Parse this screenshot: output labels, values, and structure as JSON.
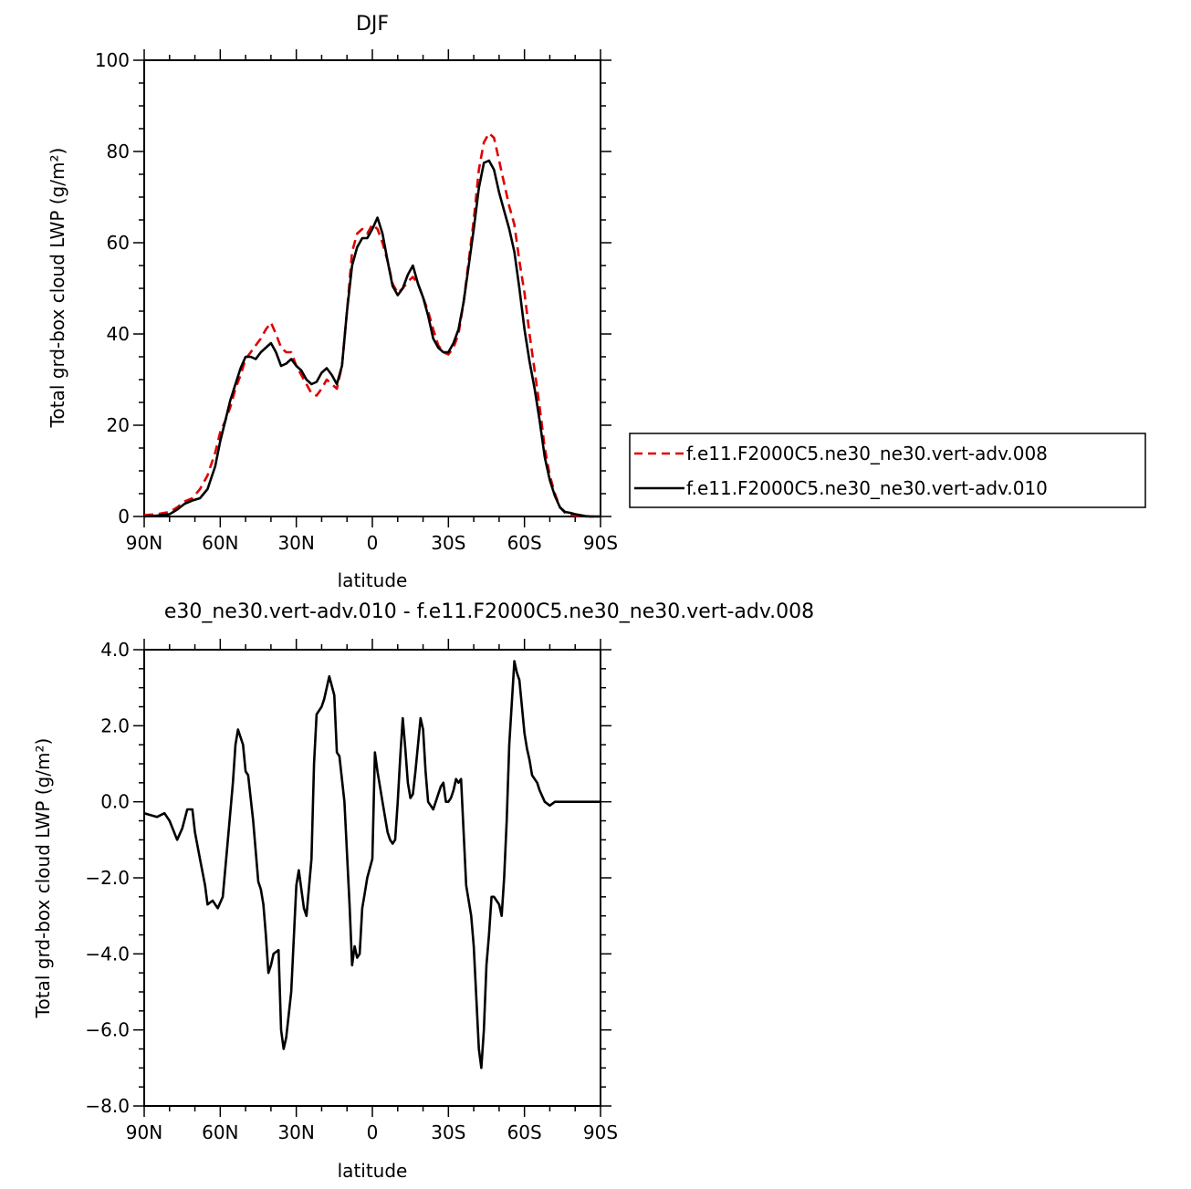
{
  "chart_data": [
    {
      "type": "line",
      "title": "DJF",
      "xlabel": "latitude",
      "ylabel": "Total grd-box cloud LWP (g/m²)",
      "xlim": [
        -90,
        90
      ],
      "ylim": [
        0,
        100
      ],
      "x_ticks": [
        -90,
        -60,
        -30,
        0,
        30,
        60,
        90
      ],
      "x_tick_labels": [
        "90N",
        "60N",
        "30N",
        "0",
        "30S",
        "60S",
        "90S"
      ],
      "y_ticks": [
        0,
        20,
        40,
        60,
        80,
        100
      ],
      "y_tick_labels": [
        "0",
        "20",
        "40",
        "60",
        "80",
        "100"
      ],
      "grid": false,
      "legend_position": "right",
      "series": [
        {
          "name": "f.e11.F2000C5.ne30_ne30.vert-adv.008",
          "color": "#e00000",
          "dash": "dashed",
          "x": [
            -90,
            -85,
            -80,
            -77,
            -74,
            -71,
            -68,
            -65,
            -62,
            -60,
            -58,
            -56,
            -54,
            -52,
            -50,
            -48,
            -46,
            -44,
            -42,
            -40,
            -38,
            -36,
            -34,
            -32,
            -30,
            -28,
            -26,
            -24,
            -22,
            -20,
            -18,
            -16,
            -14,
            -12,
            -10,
            -8,
            -6,
            -4,
            -2,
            0,
            2,
            4,
            6,
            8,
            10,
            12,
            14,
            16,
            18,
            20,
            22,
            24,
            26,
            28,
            30,
            32,
            34,
            36,
            38,
            40,
            42,
            44,
            46,
            48,
            50,
            52,
            54,
            56,
            58,
            60,
            62,
            64,
            66,
            68,
            70,
            72,
            74,
            76,
            78,
            80,
            82,
            84,
            86,
            88,
            90
          ],
          "y": [
            0.3,
            0.5,
            1.0,
            2.0,
            3.3,
            4.0,
            6.0,
            9.0,
            14.0,
            18.5,
            21.0,
            24.0,
            28.0,
            31.0,
            34.5,
            36.0,
            37.5,
            39.0,
            41.0,
            42.5,
            40.0,
            37.0,
            36.0,
            36.0,
            33.0,
            31.0,
            29.0,
            27.0,
            26.5,
            28.0,
            30.0,
            29.0,
            28.0,
            33.0,
            45.0,
            58.0,
            62.0,
            63.0,
            62.0,
            64.0,
            63.0,
            60.0,
            56.0,
            51.0,
            49.0,
            50.0,
            51.5,
            52.5,
            51.0,
            48.0,
            45.0,
            41.0,
            37.5,
            36.0,
            35.5,
            37.0,
            40.0,
            47.0,
            56.0,
            65.0,
            76.0,
            82.0,
            84.0,
            83.0,
            78.0,
            73.0,
            68.0,
            64.0,
            56.0,
            49.0,
            40.0,
            32.0,
            24.0,
            15.0,
            9.0,
            5.0,
            2.0,
            0.8,
            0.4,
            0.2,
            0.1,
            0.0,
            0.0,
            0.0,
            0.0
          ]
        },
        {
          "name": "f.e11.F2000C5.ne30_ne30.vert-adv.010",
          "color": "#000000",
          "dash": "solid",
          "x": [
            -90,
            -85,
            -80,
            -77,
            -74,
            -71,
            -68,
            -65,
            -62,
            -60,
            -58,
            -56,
            -54,
            -52,
            -50,
            -48,
            -46,
            -44,
            -42,
            -40,
            -38,
            -36,
            -34,
            -32,
            -30,
            -28,
            -26,
            -24,
            -22,
            -20,
            -18,
            -16,
            -14,
            -12,
            -10,
            -8,
            -6,
            -4,
            -2,
            0,
            2,
            4,
            6,
            8,
            10,
            12,
            14,
            16,
            18,
            20,
            22,
            24,
            26,
            28,
            30,
            32,
            34,
            36,
            38,
            40,
            42,
            44,
            46,
            48,
            50,
            52,
            54,
            56,
            58,
            60,
            62,
            64,
            66,
            68,
            70,
            72,
            74,
            76,
            78,
            80,
            82,
            84,
            86,
            88,
            90
          ],
          "y": [
            0,
            0.2,
            0.5,
            1.5,
            2.8,
            3.5,
            4.0,
            6.0,
            11.0,
            16.5,
            21.0,
            25.5,
            29.0,
            32.5,
            35.0,
            35.0,
            34.5,
            36.0,
            37.0,
            38.0,
            36.0,
            33.0,
            33.5,
            34.5,
            33.0,
            32.0,
            30.0,
            29.0,
            29.5,
            31.5,
            32.5,
            31.0,
            29.0,
            33.0,
            45.0,
            55.0,
            59.0,
            61.0,
            61.0,
            63.0,
            65.5,
            62.0,
            56.0,
            50.5,
            48.5,
            50.0,
            53.0,
            55.0,
            51.0,
            48.0,
            44.0,
            39.0,
            37.0,
            36.0,
            36.0,
            38.0,
            41.0,
            47.0,
            55.0,
            63.0,
            72.0,
            77.5,
            78.0,
            76.0,
            71.0,
            67.0,
            63.0,
            58.0,
            50.0,
            41.0,
            34.0,
            28.0,
            21.0,
            13.0,
            8.0,
            4.5,
            2.0,
            1.0,
            0.8,
            0.5,
            0.3,
            0.1,
            0.0,
            0.0,
            0.0
          ]
        }
      ]
    },
    {
      "type": "line",
      "title": "e30_ne30.vert-adv.010 - f.e11.F2000C5.ne30_ne30.vert-adv.008",
      "xlabel": "latitude",
      "ylabel": "Total grd-box cloud LWP (g/m²)",
      "xlim": [
        -90,
        90
      ],
      "ylim": [
        -8,
        4
      ],
      "x_ticks": [
        -90,
        -60,
        -30,
        0,
        30,
        60,
        90
      ],
      "x_tick_labels": [
        "90N",
        "60N",
        "30N",
        "0",
        "30S",
        "60S",
        "90S"
      ],
      "y_ticks": [
        -8,
        -6,
        -4,
        -2,
        0,
        2,
        4
      ],
      "y_tick_labels": [
        "−8.0",
        "−6.0",
        "−4.0",
        "−2.0",
        "0.0",
        "2.0",
        "4.0"
      ],
      "grid": false,
      "series": [
        {
          "color": "#000000",
          "dash": "solid",
          "x": [
            -90,
            -85,
            -82,
            -80,
            -77,
            -75,
            -73,
            -71,
            -70,
            -68,
            -66,
            -65,
            -63,
            -61,
            -59,
            -57,
            -55,
            -54,
            -53,
            -51,
            -50,
            -49,
            -47,
            -45,
            -44,
            -43,
            -42,
            -41,
            -40,
            -39,
            -37,
            -36,
            -35,
            -34,
            -32,
            -30,
            -29,
            -27,
            -26,
            -24,
            -23,
            -22,
            -20,
            -19,
            -18,
            -17,
            -15,
            -14,
            -13,
            -11,
            -9,
            -8,
            -7,
            -6,
            -5,
            -4,
            -3,
            -2,
            0,
            1,
            2,
            4,
            6,
            7,
            8,
            9,
            10,
            11,
            12,
            13,
            14,
            15,
            16,
            17,
            18,
            19,
            20,
            21,
            22,
            23,
            24,
            26,
            27,
            28,
            29,
            30,
            31,
            32,
            33,
            34,
            35,
            37,
            39,
            40,
            42,
            43,
            44,
            45,
            46,
            47,
            48,
            49,
            50,
            51,
            52,
            53,
            54,
            55,
            56,
            57,
            58,
            59,
            60,
            61,
            62,
            63,
            64,
            65,
            66,
            68,
            70,
            72,
            73,
            75,
            77,
            79,
            81,
            83,
            85,
            87,
            89,
            90
          ],
          "y": [
            -0.3,
            -0.4,
            -0.3,
            -0.5,
            -1.0,
            -0.7,
            -0.2,
            -0.2,
            -0.8,
            -1.5,
            -2.2,
            -2.7,
            -2.6,
            -2.8,
            -2.5,
            -1.0,
            0.5,
            1.5,
            1.9,
            1.5,
            0.8,
            0.7,
            -0.5,
            -2.1,
            -2.3,
            -2.7,
            -3.5,
            -4.5,
            -4.3,
            -4.0,
            -3.9,
            -6.0,
            -6.5,
            -6.2,
            -5.0,
            -2.2,
            -1.8,
            -2.8,
            -3.0,
            -1.5,
            1.0,
            2.3,
            2.5,
            2.7,
            3.0,
            3.3,
            2.8,
            1.3,
            1.2,
            0.0,
            -2.7,
            -4.3,
            -3.8,
            -4.1,
            -4.0,
            -2.8,
            -2.4,
            -2.0,
            -1.5,
            1.3,
            0.8,
            0.0,
            -0.8,
            -1.0,
            -1.1,
            -1.0,
            0.0,
            1.2,
            2.2,
            1.4,
            0.5,
            0.1,
            0.2,
            0.8,
            1.5,
            2.2,
            1.9,
            0.8,
            0.0,
            -0.1,
            -0.2,
            0.2,
            0.4,
            0.5,
            0.0,
            0.0,
            0.1,
            0.3,
            0.6,
            0.5,
            0.6,
            -2.2,
            -3.0,
            -3.8,
            -6.5,
            -7.0,
            -6.0,
            -4.3,
            -3.5,
            -2.5,
            -2.5,
            -2.6,
            -2.7,
            -3.0,
            -2.0,
            -0.5,
            1.5,
            2.6,
            3.7,
            3.4,
            3.2,
            2.5,
            1.8,
            1.4,
            1.1,
            0.7,
            0.6,
            0.5,
            0.3,
            0.0,
            -0.1,
            0.0,
            0.0,
            0.0,
            0.0,
            0.0,
            0.0,
            0.0,
            0.0,
            0.0,
            0.0,
            0.0
          ]
        }
      ]
    }
  ]
}
